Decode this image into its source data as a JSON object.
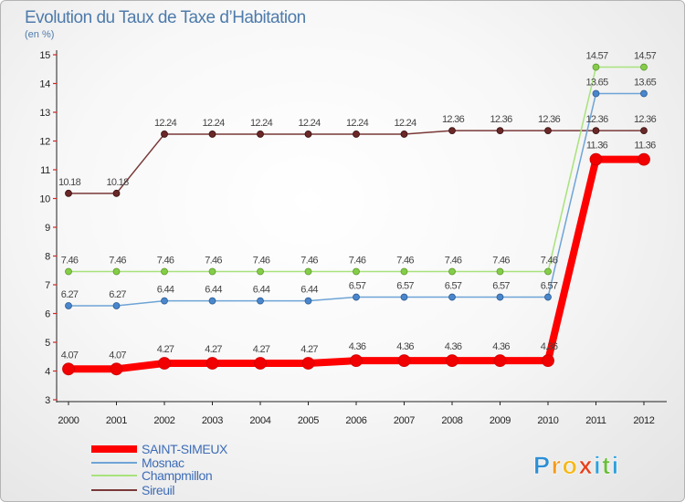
{
  "chart_data": {
    "type": "line",
    "title": "Evolution du Taux de Taxe d’Habitation",
    "subtitle": "(en %)",
    "categories": [
      "2000",
      "2001",
      "2002",
      "2003",
      "2004",
      "2005",
      "2006",
      "2007",
      "2008",
      "2009",
      "2010",
      "2011",
      "2012"
    ],
    "ylim": [
      3,
      15
    ],
    "yticks": [
      3,
      4,
      5,
      6,
      7,
      8,
      9,
      10,
      11,
      12,
      13,
      14,
      15
    ],
    "grid": false,
    "legend": "bottom-left",
    "series": [
      {
        "name": "SAINT-SIMEUX",
        "color": "#ff0000",
        "marker_color": "#f00000",
        "values": [
          4.07,
          4.07,
          4.27,
          4.27,
          4.27,
          4.27,
          4.36,
          4.36,
          4.36,
          4.36,
          4.36,
          11.36,
          11.36
        ]
      },
      {
        "name": "Mosnac",
        "color": "#6ea4d6",
        "marker_color": "#4a86cc",
        "values": [
          6.27,
          6.27,
          6.44,
          6.44,
          6.44,
          6.44,
          6.57,
          6.57,
          6.57,
          6.57,
          6.57,
          13.65,
          13.65
        ]
      },
      {
        "name": "Champmillon",
        "color": "#a8e27c",
        "marker_color": "#86cc48",
        "values": [
          7.46,
          7.46,
          7.46,
          7.46,
          7.46,
          7.46,
          7.46,
          7.46,
          7.46,
          7.46,
          7.46,
          14.57,
          14.57
        ]
      },
      {
        "name": "Sireuil",
        "color": "#7a3838",
        "marker_color": "#6a2828",
        "values": [
          10.18,
          10.18,
          12.24,
          12.24,
          12.24,
          12.24,
          12.24,
          12.24,
          12.36,
          12.36,
          12.36,
          12.36,
          12.36
        ]
      }
    ]
  },
  "colors": {
    "title": "#4e7bab",
    "legend_text": "#3d6cb6",
    "axis": "#222222",
    "y_tick_mark": "#e02020"
  },
  "logo": {
    "text": "Proxiti",
    "colors": [
      "#2e8fd3",
      "#f39a1e",
      "#f5b81a",
      "#e8401c",
      "#2fa0dc",
      "#6abd3c",
      "#2fa0dc"
    ]
  }
}
